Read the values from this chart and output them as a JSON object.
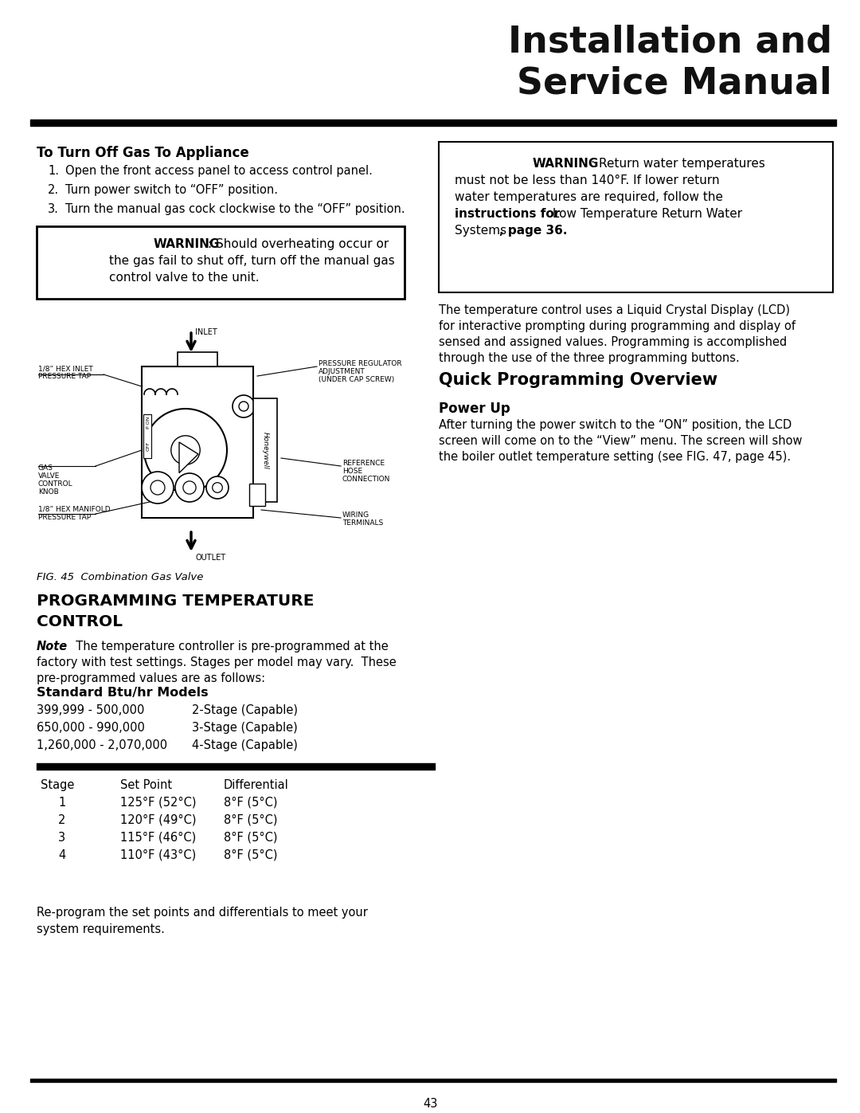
{
  "title_line1": "Installation and",
  "title_line2": "Service Manual",
  "bg_color": "#ffffff",
  "page_number": "43",
  "section1_title": "To Turn Off Gas To Appliance",
  "steps": [
    "Open the front access panel to access control panel.",
    "Turn power switch to “OFF” position.",
    "Turn the manual gas cock clockwise to the “OFF” position."
  ],
  "warning1_bold": "WARNING",
  "warning1_rest": ": Should overheating occur or",
  "warning1_line2": "the gas fail to shut off, turn off the manual gas",
  "warning1_line3": "control valve to the unit.",
  "warning2_bold": "WARNING",
  "warn2_line1_rest": ": Return water temperatures",
  "warn2_line2": "must not be less than 140°F. If lower return",
  "warn2_line3": "water temperatures are required, follow the",
  "warn2_line4_bold": "instructions for",
  "warn2_line4_rest": " Low Temperature Return Water",
  "warn2_line5a": "Systems ",
  "warn2_line5b": ", page 36.",
  "fig_caption": "FIG. 45  Combination Gas Valve",
  "lcd_lines": [
    "The temperature control uses a Liquid Crystal Display (LCD)",
    "for interactive prompting during programming and display of",
    "sensed and assigned values. Programming is accomplished",
    "through the use of the three programming buttons."
  ],
  "section2_title": "Quick Programming Overview",
  "section3_title": "Power Up",
  "power_lines": [
    "After turning the power switch to the “ON” position, the LCD",
    "screen will come on to the “View” menu. The screen will show",
    "the boiler outlet temperature setting (see FIG. 47, page 45)."
  ],
  "prog_title1": "PROGRAMMING TEMPERATURE",
  "prog_title2": "CONTROL",
  "note_label": "Note",
  "note_text1": "  The temperature controller is pre-programmed at the",
  "note_text2": "factory with test settings. Stages per model may vary.  These",
  "note_text3": "pre-programmed values are as follows:",
  "std_btu_title": "Standard Btu/hr Models",
  "btu_rows": [
    [
      "399,999 - 500,000",
      "2-Stage (Capable)"
    ],
    [
      "650,000 - 990,000",
      "3-Stage (Capable)"
    ],
    [
      "1,260,000 - 2,070,000",
      "4-Stage (Capable)"
    ]
  ],
  "table_headers": [
    "Stage",
    "Set Point",
    "Differential"
  ],
  "table_rows": [
    [
      "1",
      "125°F (52°C)",
      "8°F (5°C)"
    ],
    [
      "2",
      "120°F (49°C)",
      "8°F (5°C)"
    ],
    [
      "3",
      "115°F (46°C)",
      "8°F (5°C)"
    ],
    [
      "4",
      "110°F (43°C)",
      "8°F (5°C)"
    ]
  ],
  "footer_line1": "Re-program the set points and differentials to meet your",
  "footer_line2": "system requirements.",
  "diag_labels": {
    "inlet": "INLET",
    "outlet": "OUTLET",
    "hex_inlet": [
      "1/8” HEX INLET",
      "PRESSURE TAP"
    ],
    "pressure_reg": [
      "PRESSURE REGULATOR",
      "ADJUSTMENT",
      "(UNDER CAP SCREW)"
    ],
    "gas_valve": [
      "GAS",
      "VALVE",
      "CONTROL",
      "KNOB"
    ],
    "reference": [
      "REFERENCE",
      "HOSE",
      "CONNECTION"
    ],
    "hex_manifold": [
      "1/8” HEX MANIFOLD",
      "PRESSURE TAP"
    ],
    "wiring": [
      "WIRING",
      "TERMINALS"
    ]
  }
}
